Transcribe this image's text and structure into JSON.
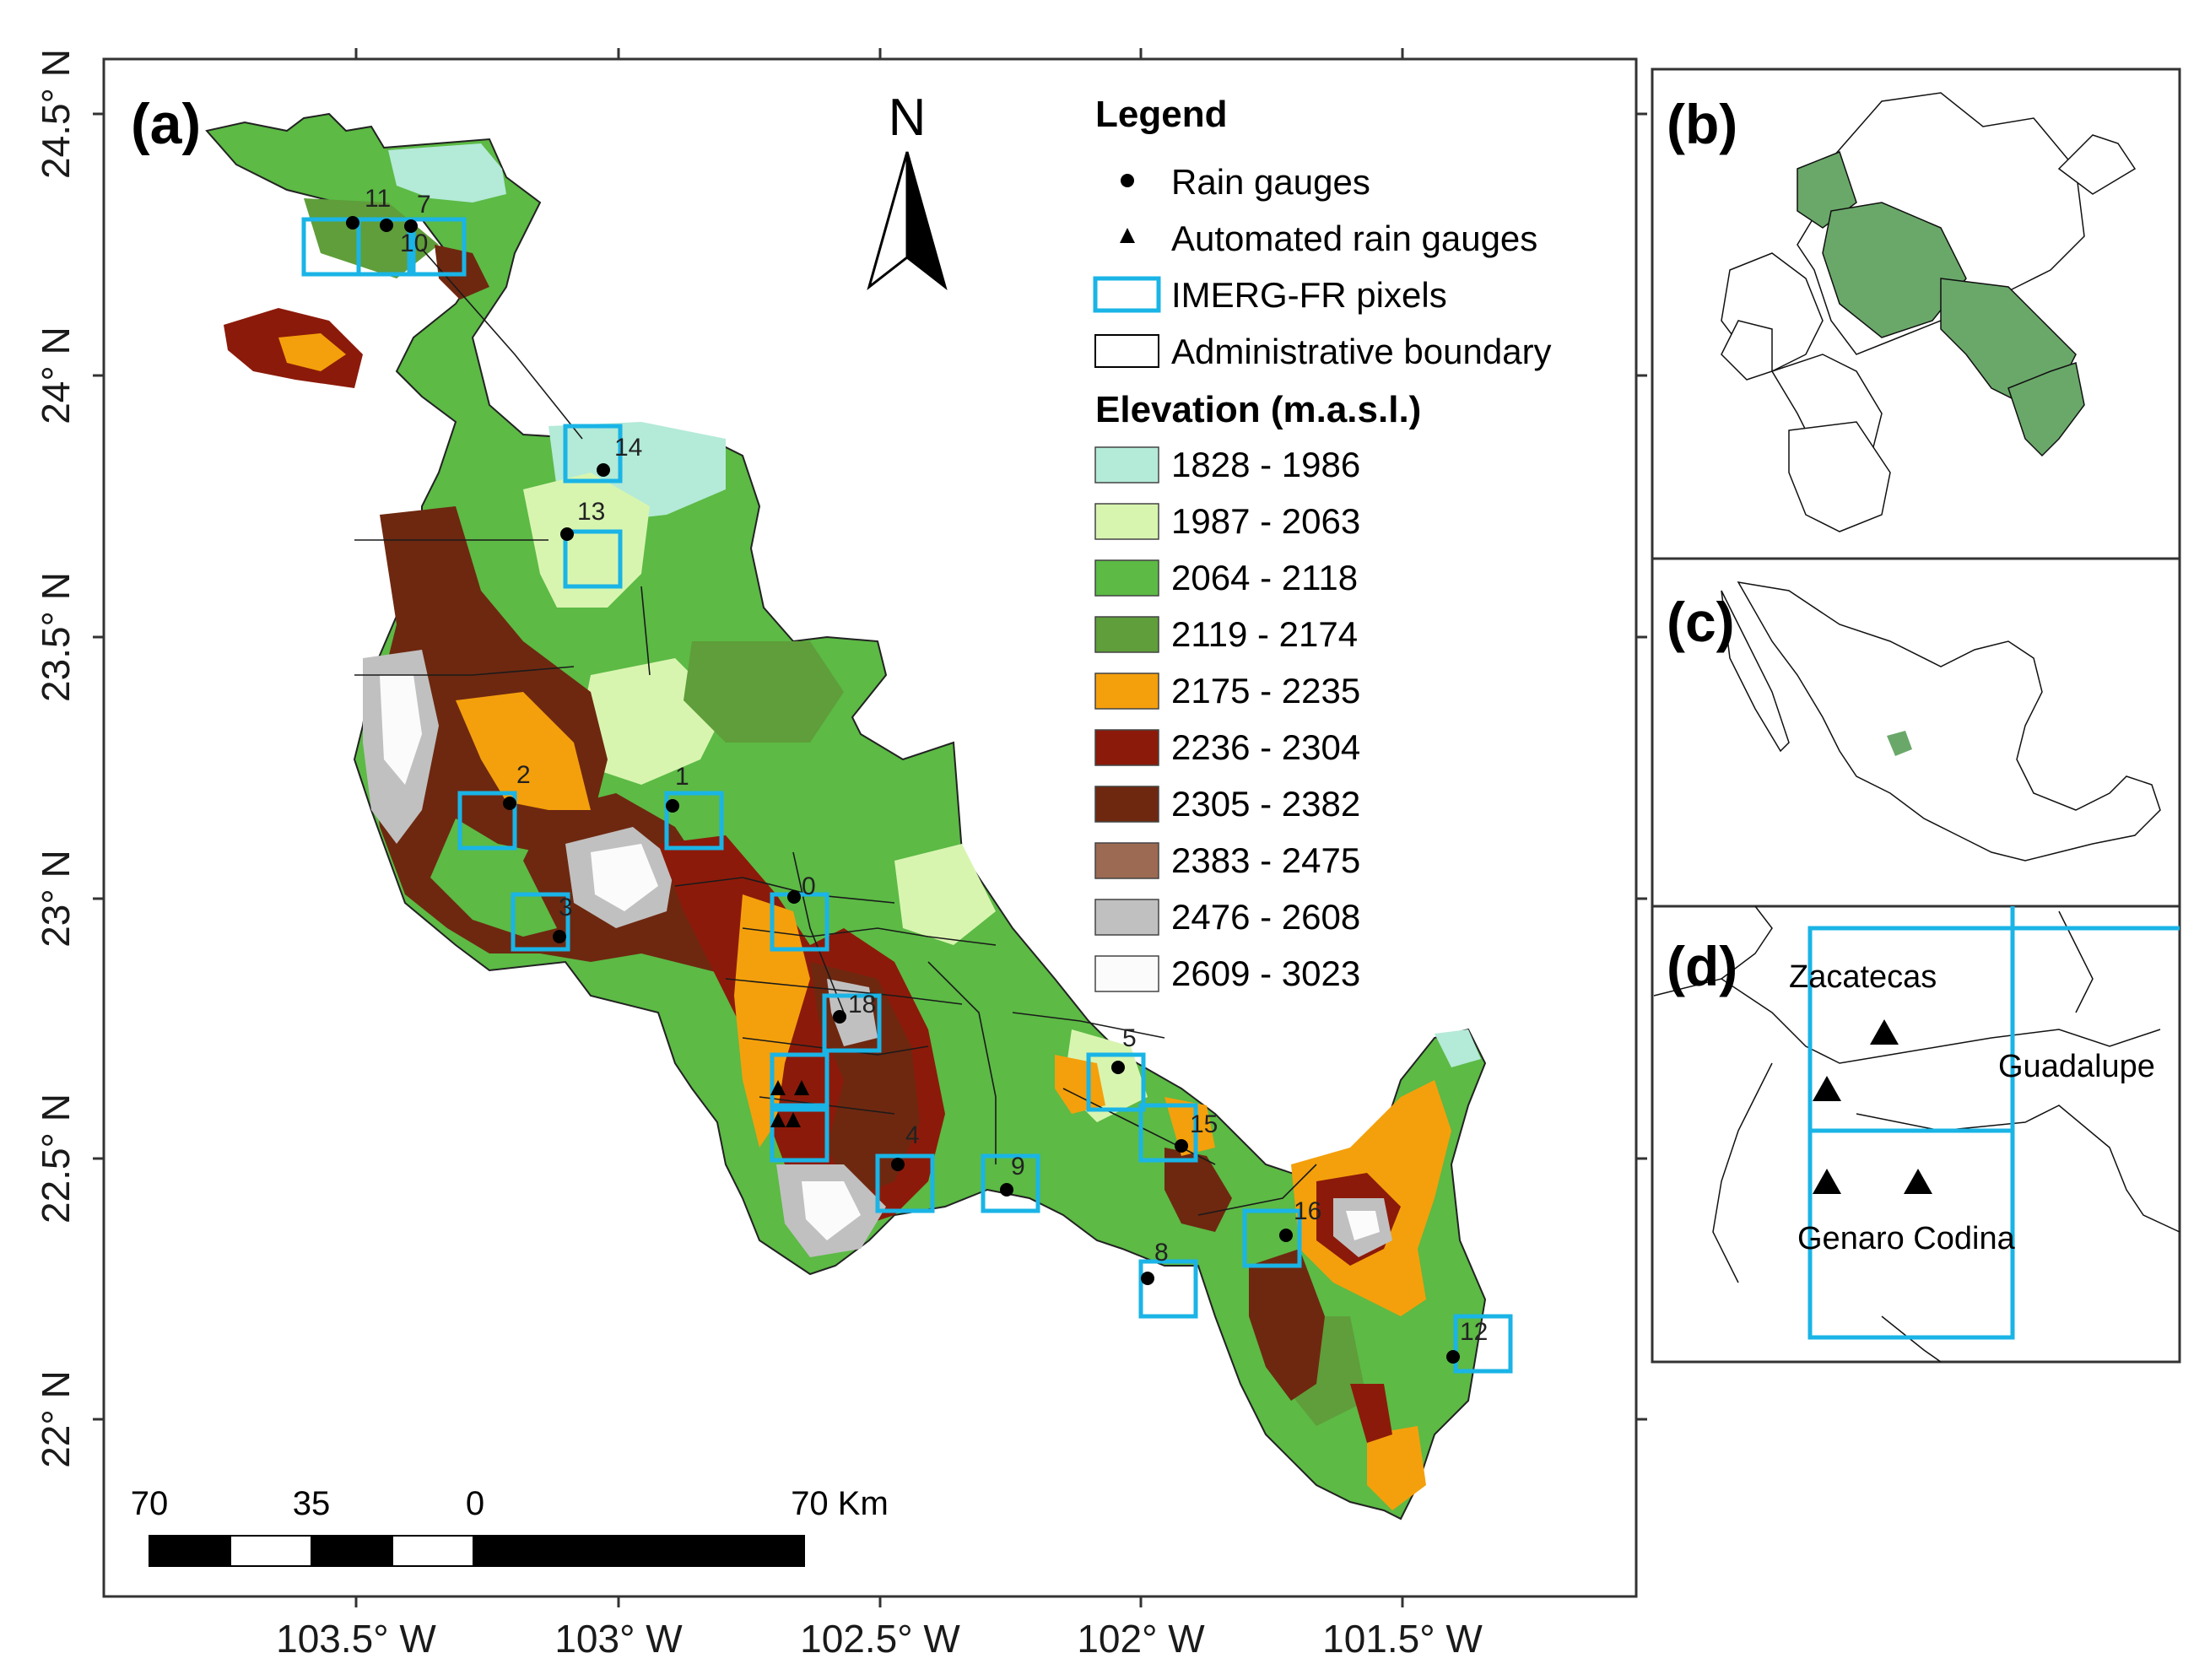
{
  "panels": {
    "a": {
      "label": "(a)"
    },
    "b": {
      "label": "(b)"
    },
    "c": {
      "label": "(c)"
    },
    "d": {
      "label": "(d)"
    }
  },
  "north_arrow": {
    "label": "N"
  },
  "axes": {
    "lat_ticks": [
      "24.5° N",
      "24° N",
      "23.5° N",
      "23° N",
      "22.5° N",
      "22° N"
    ],
    "lon_ticks": [
      "103.5° W",
      "103° W",
      "102.5° W",
      "102° W",
      "101.5° W"
    ]
  },
  "legend": {
    "title": "Legend",
    "items": [
      {
        "label": "Rain gauges",
        "symbol": "dot"
      },
      {
        "label": "Automated rain gauges",
        "symbol": "triangle"
      },
      {
        "label": "IMERG-FR pixels",
        "symbol": "cyan-box"
      },
      {
        "label": "Administrative boundary",
        "symbol": "black-box"
      }
    ],
    "elevation_title": "Elevation (m.a.s.l.)",
    "elevation_classes": [
      {
        "label": "1828 - 1986",
        "color": "#b4ead8"
      },
      {
        "label": "1987 - 2063",
        "color": "#d8f5b0"
      },
      {
        "label": "2064 - 2118",
        "color": "#5cba45"
      },
      {
        "label": "2119 - 2174",
        "color": "#5f9e3a"
      },
      {
        "label": "2175 - 2235",
        "color": "#f4a00c"
      },
      {
        "label": "2236 - 2304",
        "color": "#8c1a0a"
      },
      {
        "label": "2305 - 2382",
        "color": "#6e2810"
      },
      {
        "label": "2383 - 2475",
        "color": "#9c6a52"
      },
      {
        "label": "2476 - 2608",
        "color": "#c0c0c0"
      },
      {
        "label": "2609 - 3023",
        "color": "#fbfbfb"
      }
    ]
  },
  "scale_bar": {
    "labels": [
      "70",
      "35",
      "0",
      "70 Km"
    ]
  },
  "gauge_ids": [
    "11",
    "7",
    "10",
    "14",
    "13",
    "2",
    "1",
    "3",
    "0",
    "18",
    "5",
    "15",
    "4",
    "9",
    "16",
    "8",
    "12"
  ],
  "inset_d": {
    "places": [
      "Zacatecas",
      "Guadalupe",
      "Genaro Codina"
    ]
  },
  "colors": {
    "imerg_box": "#1ab4e6",
    "highlight_green": "#6aa86a"
  }
}
